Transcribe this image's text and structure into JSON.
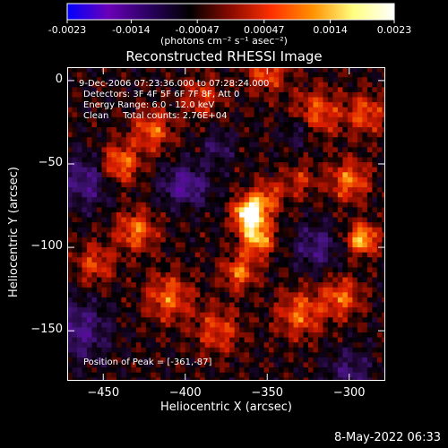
{
  "colorbar": {
    "tick_labels": [
      "-0.0023",
      "-0.0014",
      "-0.00047",
      "0.00047",
      "0.0014",
      "0.0023"
    ],
    "tick_values": [
      -0.0023,
      -0.0014,
      -0.00047,
      0.00047,
      0.0014,
      0.0023
    ],
    "range": [
      -0.0023,
      0.0023
    ],
    "unit_label": "(photons cm⁻² s⁻¹ asec⁻²)",
    "colors": [
      "#0000ff",
      "#6a00b8",
      "#2a0060",
      "#000000",
      "#8a0a00",
      "#ff3000",
      "#ff9000",
      "#ffff80",
      "#ffffff"
    ]
  },
  "title": "Reconstructed RHESSI Image",
  "annotations": {
    "time_range": "9-Dec-2006 07:23:36.000 to 07:28:24.000",
    "detectors": "Detectors: 3F 4F 5F 6F 7F 8F, Att 0",
    "energy": "Energy Range: 6.0 - 12.0 keV",
    "clean": "Clean     Total counts: 2.76E+04",
    "peak": "Position of Peak = [-361,-87]"
  },
  "chart_data": {
    "type": "heatmap",
    "title": "Reconstructed RHESSI Image",
    "xlabel": "Heliocentric X (arcsec)",
    "ylabel": "Heliocentric Y (arcsec)",
    "xlim": [
      -472,
      -278
    ],
    "ylim": [
      -180,
      8
    ],
    "x_ticks": [
      -450,
      -400,
      -350,
      -300
    ],
    "x_tick_labels": [
      "−450",
      "−400",
      "−350",
      "−300"
    ],
    "y_ticks": [
      0,
      -50,
      -100,
      -150
    ],
    "y_tick_labels": [
      "0",
      "−50",
      "−100",
      "−150"
    ],
    "peak": [
      -361,
      -87
    ],
    "value_range": [
      -0.0023,
      0.0023
    ]
  },
  "timestamp": "8-May-2022 06:33"
}
